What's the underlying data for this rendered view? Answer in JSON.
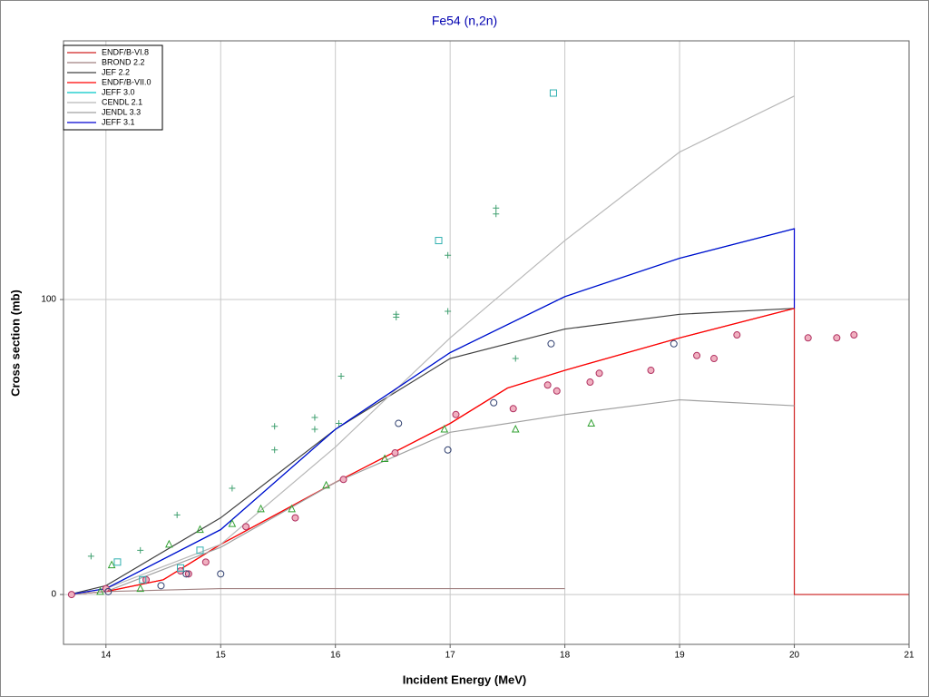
{
  "chart_data": {
    "type": "line",
    "title": "Fe54 (n,2n)",
    "x_label": "Incident Energy (MeV)",
    "y_label": "Cross section (mb)",
    "xlim": [
      13.63,
      21
    ],
    "ylim": [
      -16.9,
      187.7
    ],
    "xticks": [
      14,
      15,
      16,
      17,
      18,
      19,
      20,
      21
    ],
    "yticks": [
      0,
      100
    ],
    "grid": true,
    "legend": "upper-left",
    "series": [
      {
        "name": "ENDF/B-VI.8",
        "color": "#d02020",
        "x": [
          13.68,
          14,
          14.5,
          15,
          16,
          17,
          17.5,
          18,
          19,
          20,
          20,
          21
        ],
        "values": [
          0,
          1,
          5,
          17,
          38,
          58,
          70,
          76,
          87,
          97,
          0,
          0
        ]
      },
      {
        "name": "BROND 2.2",
        "color": "#a08080",
        "x": [
          13.68,
          14,
          15,
          18
        ],
        "values": [
          0,
          1,
          2,
          2
        ]
      },
      {
        "name": "JEF 2.2",
        "color": "#404040",
        "x": [
          13.68,
          14,
          15,
          16,
          17,
          18,
          19,
          20
        ],
        "values": [
          0,
          3,
          26,
          56,
          80,
          90,
          95,
          97
        ]
      },
      {
        "name": "ENDF/B-VII.0",
        "color": "#ff0000",
        "x": [
          13.68,
          14,
          14.5,
          15,
          16,
          17,
          17.5,
          18,
          19,
          20
        ],
        "values": [
          0,
          1,
          5,
          17,
          38,
          58,
          70,
          76,
          87,
          97
        ]
      },
      {
        "name": "JEFF 3.0",
        "color": "#00c8c8",
        "x": [
          13.68,
          14,
          15,
          16,
          17,
          18,
          19,
          20
        ],
        "values": [
          0,
          2,
          22,
          56,
          82,
          101,
          114,
          124
        ]
      },
      {
        "name": "CENDL 2.1",
        "color": "#b8b8b8",
        "x": [
          13.68,
          14,
          15,
          16,
          17,
          18,
          19,
          20
        ],
        "values": [
          0,
          2,
          17,
          50,
          87,
          120,
          150,
          169
        ]
      },
      {
        "name": "JENDL 3.3",
        "color": "#a0a0a0",
        "x": [
          13.68,
          14,
          15,
          16,
          17,
          18,
          19,
          20
        ],
        "values": [
          0,
          1,
          16,
          38,
          55,
          61,
          66,
          64
        ]
      },
      {
        "name": "JEFF 3.1",
        "color": "#0000d0",
        "x": [
          13.68,
          14,
          15,
          16,
          17,
          18,
          19,
          20,
          20
        ],
        "values": [
          0,
          2,
          22,
          56,
          82,
          101,
          114,
          124,
          97
        ]
      },
      {
        "marker": "circle-x",
        "color": "#b03060",
        "x": [
          13.7,
          14.0,
          14.35,
          14.65,
          14.72,
          14.87,
          15.22,
          15.65,
          16.07,
          16.52,
          17.05,
          17.55,
          17.85,
          17.93,
          18.22,
          18.3,
          18.75,
          19.15,
          19.3,
          19.5,
          20.12,
          20.37,
          20.52
        ],
        "values": [
          0,
          2,
          5,
          8,
          7,
          11,
          23,
          26,
          39,
          48,
          61,
          63,
          71,
          69,
          72,
          75,
          76,
          81,
          80,
          88,
          87,
          87,
          88
        ]
      },
      {
        "marker": "triangle",
        "color": "#30a030",
        "x": [
          13.95,
          14.05,
          14.3,
          14.55,
          14.82,
          15.1,
          15.35,
          15.62,
          15.92,
          16.43,
          16.95,
          17.57,
          18.23
        ],
        "values": [
          1,
          10,
          2,
          17,
          22,
          24,
          29,
          29,
          37,
          46,
          56,
          56,
          58
        ]
      },
      {
        "marker": "plus",
        "color": "#40a070",
        "x": [
          13.87,
          14.3,
          14.62,
          15.1,
          15.47,
          15.47,
          15.82,
          15.82,
          16.03,
          16.05,
          16.53,
          16.53,
          16.98,
          16.98,
          17.4,
          17.4,
          17.57
        ],
        "values": [
          13,
          15,
          27,
          36,
          49,
          57,
          60,
          56,
          58,
          74,
          95,
          94,
          96,
          115,
          131,
          129,
          80
        ]
      },
      {
        "marker": "circle",
        "color": "#304070",
        "x": [
          14.02,
          14.48,
          14.7,
          15.0,
          16.55,
          16.98,
          17.38,
          17.88,
          18.95
        ],
        "values": [
          1,
          3,
          7,
          7,
          58,
          49,
          65,
          85,
          85
        ]
      },
      {
        "marker": "square",
        "color": "#30b0b0",
        "x": [
          14.1,
          14.32,
          14.65,
          14.82,
          16.9,
          17.9
        ],
        "values": [
          11,
          5,
          9,
          15,
          120,
          170
        ]
      }
    ]
  }
}
